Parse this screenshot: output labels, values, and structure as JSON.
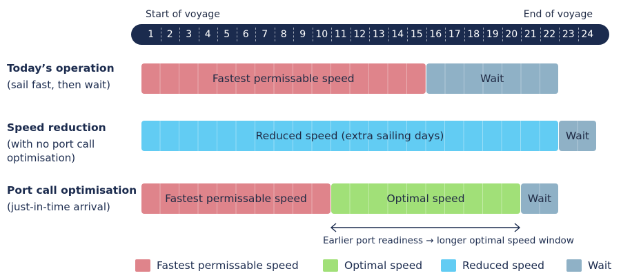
{
  "timeline": {
    "start_label": "Start of voyage",
    "end_label": "End of voyage",
    "hours": [
      "1",
      "2",
      "3",
      "4",
      "5",
      "6",
      "7",
      "8",
      "9",
      "10",
      "11",
      "12",
      "13",
      "14",
      "15",
      "16",
      "17",
      "18",
      "19",
      "20",
      "21",
      "22",
      "23",
      "24"
    ]
  },
  "rows": [
    {
      "title": "Today’s operation",
      "subtitle": "(sail fast, then wait)",
      "segments": [
        {
          "label": "Fastest permissable speed",
          "kind": "fast",
          "start": 1,
          "end": 15
        },
        {
          "label": "Wait",
          "kind": "wait",
          "start": 16,
          "end": 22
        }
      ]
    },
    {
      "title": "Speed reduction",
      "subtitle": "(with no port call\noptimisation)",
      "segments": [
        {
          "label": "Reduced speed (extra sailing days)",
          "kind": "reduced",
          "start": 1,
          "end": 22
        },
        {
          "label": "Wait",
          "kind": "wait",
          "start": 23,
          "end": 24
        }
      ]
    },
    {
      "title": "Port call optimisation",
      "subtitle": "(just-in-time arrival)",
      "segments": [
        {
          "label": "Fastest permissable speed",
          "kind": "fast",
          "start": 1,
          "end": 10
        },
        {
          "label": "Optimal speed",
          "kind": "optimal",
          "start": 11,
          "end": 20
        },
        {
          "label": "Wait",
          "kind": "wait",
          "start": 21,
          "end": 22
        }
      ]
    }
  ],
  "annotation": {
    "caption": "Earlier port readiness → longer optimal speed window",
    "from_hour": 11,
    "to_hour": 20
  },
  "legend": [
    {
      "label": "Fastest permissable speed",
      "kind": "fast",
      "color": "#df848b"
    },
    {
      "label": "Optimal speed",
      "kind": "optimal",
      "color": "#a1e078"
    },
    {
      "label": "Reduced speed",
      "kind": "reduced",
      "color": "#62ccf3"
    },
    {
      "label": "Wait",
      "kind": "wait",
      "color": "#8fb1c6"
    }
  ],
  "colors": {
    "fast": "#df848b",
    "wait": "#8fb1c6",
    "reduced": "#62ccf3",
    "optimal": "#a1e078",
    "timeline": "#1b2b4e",
    "text": "#1b2b4e"
  }
}
